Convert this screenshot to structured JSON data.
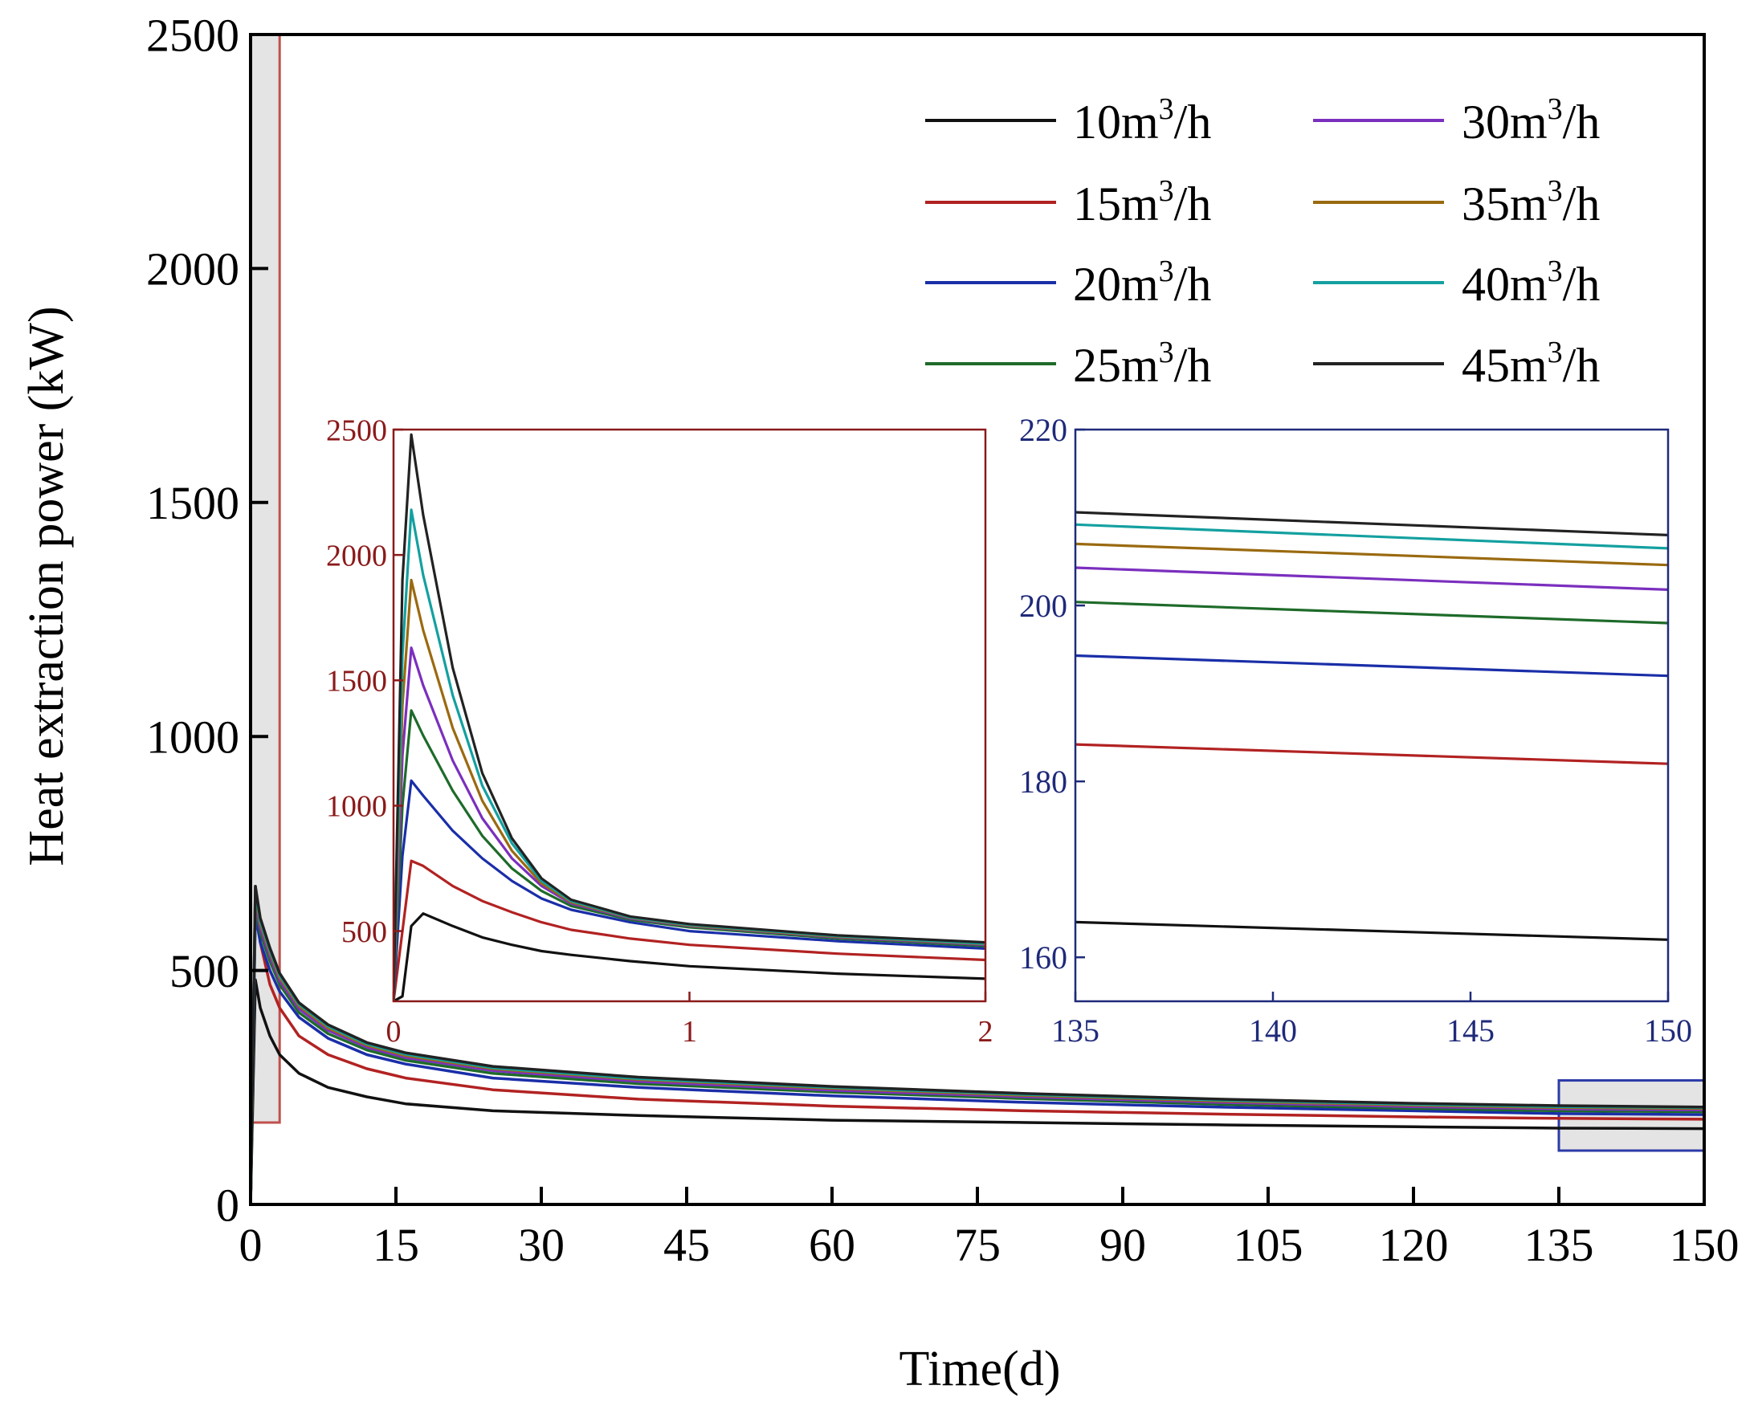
{
  "figure": {
    "ylabel": "Heat extraction power (kW)",
    "xlabel": "Time(d)"
  },
  "legend": [
    {
      "value": "10",
      "unit_pre": "m",
      "sup": "3",
      "unit_post": "/h",
      "color": "#111111"
    },
    {
      "value": "15",
      "unit_pre": "m",
      "sup": "3",
      "unit_post": "/h",
      "color": "#b22222"
    },
    {
      "value": "20",
      "unit_pre": "m",
      "sup": "3",
      "unit_post": "/h",
      "color": "#1a2ea8"
    },
    {
      "value": "25",
      "unit_pre": "m",
      "sup": "3",
      "unit_post": "/h",
      "color": "#1e6b2a"
    },
    {
      "value": "30",
      "unit_pre": "m",
      "sup": "3",
      "unit_post": "/h",
      "color": "#7b2fbe"
    },
    {
      "value": "35",
      "unit_pre": "m",
      "sup": "3",
      "unit_post": "/h",
      "color": "#9a6a10"
    },
    {
      "value": "40",
      "unit_pre": "m",
      "sup": "3",
      "unit_post": "/h",
      "color": "#14a0a0"
    },
    {
      "value": "45",
      "unit_pre": "m",
      "sup": "3",
      "unit_post": "/h",
      "color": "#222222"
    }
  ],
  "chart_data": [
    {
      "id": "main",
      "type": "line",
      "title": "",
      "xlabel": "Time(d)",
      "ylabel": "Heat extraction power (kW)",
      "xlim": [
        0,
        150
      ],
      "ylim": [
        0,
        2500
      ],
      "xticks": [
        "0",
        "15",
        "30",
        "45",
        "60",
        "75",
        "90",
        "105",
        "120",
        "135",
        "150"
      ],
      "yticks": [
        "0",
        "500",
        "1000",
        "1500",
        "2000",
        "2500"
      ],
      "x": [
        0,
        0.5,
        1,
        2,
        3,
        5,
        8,
        12,
        16,
        25,
        40,
        60,
        80,
        100,
        120,
        135,
        150
      ],
      "series": [
        {
          "name": "10m3/h",
          "values": [
            0,
            480,
            420,
            360,
            320,
            280,
            250,
            230,
            215,
            200,
            190,
            180,
            175,
            170,
            166,
            163,
            162
          ]
        },
        {
          "name": "15m3/h",
          "values": [
            0,
            680,
            560,
            470,
            420,
            360,
            320,
            290,
            270,
            245,
            225,
            210,
            200,
            193,
            187,
            184,
            182
          ]
        },
        {
          "name": "20m3/h",
          "values": [
            0,
            620,
            560,
            500,
            455,
            400,
            355,
            320,
            300,
            270,
            250,
            232,
            218,
            208,
            200,
            194,
            192
          ]
        },
        {
          "name": "25m3/h",
          "values": [
            0,
            640,
            580,
            520,
            470,
            410,
            365,
            330,
            308,
            280,
            258,
            240,
            226,
            214,
            205,
            200,
            198
          ]
        },
        {
          "name": "30m3/h",
          "values": [
            0,
            650,
            590,
            530,
            478,
            418,
            372,
            336,
            314,
            286,
            263,
            244,
            230,
            218,
            209,
            204,
            202
          ]
        },
        {
          "name": "35m3/h",
          "values": [
            0,
            660,
            600,
            538,
            485,
            424,
            377,
            340,
            318,
            290,
            267,
            248,
            233,
            221,
            212,
            207,
            205
          ]
        },
        {
          "name": "40m3/h",
          "values": [
            0,
            670,
            606,
            543,
            490,
            428,
            381,
            343,
            321,
            292,
            269,
            250,
            235,
            223,
            214,
            209,
            207
          ]
        },
        {
          "name": "45m3/h",
          "values": [
            0,
            680,
            612,
            548,
            494,
            431,
            384,
            346,
            324,
            295,
            272,
            252,
            237,
            225,
            216,
            211,
            208
          ]
        }
      ],
      "highlight_regions": [
        {
          "x": [
            0,
            3
          ],
          "y": [
            175,
            2500
          ],
          "color": "#c0504d"
        },
        {
          "x": [
            135,
            150
          ],
          "y": [
            115,
            265
          ],
          "color": "#2c3aa8"
        }
      ]
    },
    {
      "id": "inset-early",
      "type": "line",
      "xlim": [
        0,
        2
      ],
      "ylim": [
        220,
        2500
      ],
      "xticks": [
        "0",
        "1",
        "2"
      ],
      "yticks": [
        "500",
        "1000",
        "1500",
        "2000",
        "2500"
      ],
      "axis_color": "#8b1a1a",
      "x": [
        0,
        0.03,
        0.06,
        0.1,
        0.2,
        0.3,
        0.4,
        0.5,
        0.6,
        0.8,
        1.0,
        1.5,
        2.0
      ],
      "series": [
        {
          "name": "10m3/h",
          "values": [
            220,
            240,
            520,
            570,
            520,
            475,
            445,
            420,
            405,
            380,
            360,
            330,
            310
          ]
        },
        {
          "name": "15m3/h",
          "values": [
            220,
            500,
            780,
            760,
            680,
            620,
            575,
            535,
            505,
            470,
            445,
            410,
            385
          ]
        },
        {
          "name": "20m3/h",
          "values": [
            220,
            800,
            1100,
            1040,
            900,
            790,
            700,
            630,
            585,
            535,
            500,
            460,
            430
          ]
        },
        {
          "name": "25m3/h",
          "values": [
            220,
            1000,
            1380,
            1280,
            1060,
            880,
            750,
            660,
            600,
            545,
            515,
            470,
            440
          ]
        },
        {
          "name": "30m3/h",
          "values": [
            220,
            1200,
            1630,
            1480,
            1180,
            950,
            790,
            680,
            610,
            550,
            520,
            475,
            445
          ]
        },
        {
          "name": "35m3/h",
          "values": [
            220,
            1400,
            1900,
            1700,
            1310,
            1020,
            820,
            690,
            615,
            553,
            522,
            477,
            448
          ]
        },
        {
          "name": "40m3/h",
          "values": [
            220,
            1600,
            2180,
            1920,
            1440,
            1080,
            850,
            700,
            620,
            555,
            525,
            480,
            450
          ]
        },
        {
          "name": "45m3/h",
          "values": [
            220,
            1900,
            2480,
            2160,
            1550,
            1130,
            870,
            710,
            625,
            558,
            528,
            483,
            455
          ]
        }
      ]
    },
    {
      "id": "inset-late",
      "type": "line",
      "xlim": [
        135,
        150
      ],
      "ylim": [
        155,
        220
      ],
      "xticks": [
        "135",
        "140",
        "145",
        "150"
      ],
      "yticks": [
        "160",
        "180",
        "200",
        "220"
      ],
      "axis_color": "#1f2a7a",
      "x": [
        135,
        150
      ],
      "series": [
        {
          "name": "10m3/h",
          "values": [
            164,
            162
          ]
        },
        {
          "name": "15m3/h",
          "values": [
            184.2,
            182
          ]
        },
        {
          "name": "20m3/h",
          "values": [
            194.3,
            192
          ]
        },
        {
          "name": "25m3/h",
          "values": [
            200.4,
            198
          ]
        },
        {
          "name": "30m3/h",
          "values": [
            204.3,
            201.8
          ]
        },
        {
          "name": "35m3/h",
          "values": [
            207,
            204.6
          ]
        },
        {
          "name": "40m3/h",
          "values": [
            209.2,
            206.5
          ]
        },
        {
          "name": "45m3/h",
          "values": [
            210.6,
            208
          ]
        }
      ]
    }
  ]
}
